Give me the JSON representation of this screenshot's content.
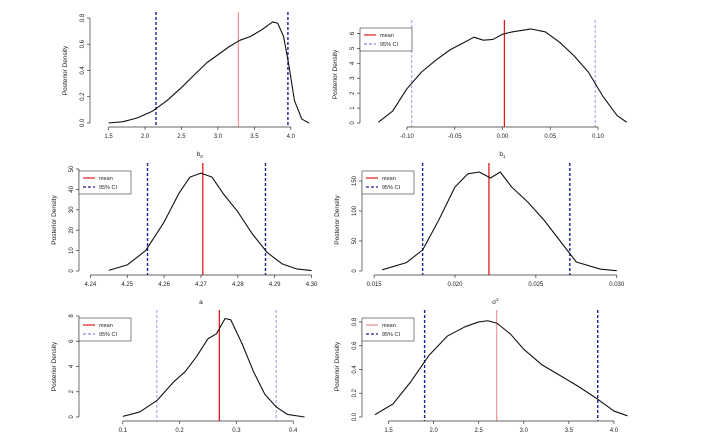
{
  "figure": {
    "y_axis_label": "Posterior Density",
    "legend": {
      "mean_label": "mean",
      "ci_label": "95% CI"
    },
    "colors": {
      "curve": "#111111",
      "mean_light": "#f08a8a",
      "mean_strong": "#e31a1c",
      "ci_light": "#8a8fe6",
      "ci_dark": "#1c1f8f",
      "frame": "#333333"
    }
  },
  "chart_data": [
    {
      "type": "line",
      "xlabel": "b",
      "xlabel_sub": "0",
      "ylabel": "Posterior Density",
      "xlim": [
        1.3,
        4.4
      ],
      "ylim": [
        0,
        0.8
      ],
      "xticks": [
        "1.5",
        "2.0",
        "2.5",
        "3.0",
        "3.5",
        "4.0"
      ],
      "yticks": [
        "0.0",
        "0.2",
        "0.4",
        "0.6",
        "0.8"
      ],
      "x": [
        1.5,
        1.7,
        1.9,
        2.1,
        2.3,
        2.5,
        2.7,
        2.85,
        3.0,
        3.15,
        3.3,
        3.45,
        3.6,
        3.75,
        3.82,
        3.9,
        3.97,
        4.05,
        4.15,
        4.25
      ],
      "y": [
        0.0,
        0.01,
        0.04,
        0.09,
        0.17,
        0.27,
        0.38,
        0.46,
        0.52,
        0.58,
        0.63,
        0.66,
        0.71,
        0.77,
        0.76,
        0.66,
        0.45,
        0.17,
        0.03,
        0.0
      ],
      "mean": 3.28,
      "ci": [
        2.15,
        3.96
      ],
      "legend_position": "none",
      "legend_style": {
        "mean": "light",
        "ci": "dark"
      }
    },
    {
      "type": "line",
      "xlabel": "b",
      "xlabel_sub": "1",
      "ylabel": "Posterior Density",
      "xlim": [
        -0.145,
        0.145
      ],
      "ylim": [
        0,
        6.5
      ],
      "xticks": [
        "-0.10",
        "-0.05",
        "0.00",
        "0.05",
        "0.10"
      ],
      "yticks": [
        "0",
        "1",
        "2",
        "3",
        "4",
        "5",
        "6"
      ],
      "x": [
        -0.13,
        -0.115,
        -0.1,
        -0.085,
        -0.07,
        -0.055,
        -0.04,
        -0.03,
        -0.02,
        -0.01,
        0.0,
        0.01,
        0.02,
        0.03,
        0.045,
        0.06,
        0.075,
        0.09,
        0.105,
        0.12,
        0.13
      ],
      "y": [
        0.05,
        0.8,
        2.3,
        3.4,
        4.2,
        4.9,
        5.4,
        5.75,
        5.55,
        5.6,
        5.95,
        6.1,
        6.2,
        6.3,
        6.1,
        5.4,
        4.5,
        3.4,
        1.8,
        0.5,
        0.05
      ],
      "mean": 0.002,
      "ci": [
        -0.095,
        0.097
      ],
      "legend_position": "top-left",
      "legend_style": {
        "mean": "strong",
        "ci": "light"
      }
    },
    {
      "type": "line",
      "xlabel": "a",
      "xlabel_sub": "",
      "ylabel": "Posterior Density",
      "xlim": [
        4.238,
        4.305
      ],
      "ylim": [
        0,
        50
      ],
      "xticks": [
        "4.24",
        "4.25",
        "4.26",
        "4.27",
        "4.28",
        "4.29",
        "4.30"
      ],
      "yticks": [
        "0",
        "10",
        "20",
        "30",
        "40",
        "50"
      ],
      "x": [
        4.245,
        4.25,
        4.255,
        4.26,
        4.264,
        4.267,
        4.27,
        4.273,
        4.276,
        4.28,
        4.284,
        4.288,
        4.292,
        4.296,
        4.3
      ],
      "y": [
        0.3,
        3,
        10,
        24,
        38,
        46,
        48,
        46,
        38,
        29,
        18,
        9,
        3.5,
        1,
        0.2
      ],
      "mean": 4.2705,
      "ci": [
        4.2555,
        4.2875
      ],
      "legend_position": "top-left",
      "legend_style": {
        "mean": "strong",
        "ci": "dark"
      }
    },
    {
      "type": "line",
      "xlabel": "σ",
      "xlabel_sup": "2",
      "ylabel": "Posterior Density",
      "xlim": [
        0.0145,
        0.0315
      ],
      "ylim": [
        0,
        170
      ],
      "xticks": [
        "0.015",
        "0.020",
        "0.025",
        "0.030"
      ],
      "yticks": [
        "0",
        "50",
        "100",
        "150"
      ],
      "x": [
        0.0155,
        0.017,
        0.018,
        0.019,
        0.02,
        0.0208,
        0.0215,
        0.0222,
        0.0228,
        0.0235,
        0.0245,
        0.0255,
        0.0265,
        0.0275,
        0.029,
        0.03
      ],
      "y": [
        2,
        14,
        35,
        85,
        140,
        162,
        165,
        155,
        165,
        140,
        115,
        85,
        50,
        15,
        3,
        0.5
      ],
      "mean": 0.0221,
      "ci": [
        0.018,
        0.0271
      ],
      "legend_position": "top-left",
      "legend_style": {
        "mean": "strong",
        "ci": "dark"
      }
    },
    {
      "type": "line",
      "xlabel": "",
      "xlabel_sub": "",
      "ylabel": "Posterior Density",
      "xlim": [
        0.03,
        0.47
      ],
      "ylim": [
        0,
        8
      ],
      "xticks": [
        "0.1",
        "0.2",
        "0.3",
        "0.4"
      ],
      "yticks": [
        "0",
        "2",
        "4",
        "6",
        "8"
      ],
      "x": [
        0.1,
        0.13,
        0.16,
        0.19,
        0.21,
        0.23,
        0.25,
        0.265,
        0.28,
        0.29,
        0.31,
        0.33,
        0.35,
        0.37,
        0.39,
        0.42
      ],
      "y": [
        0.05,
        0.4,
        1.3,
        2.8,
        3.6,
        4.8,
        6.2,
        6.6,
        7.8,
        7.7,
        5.8,
        3.6,
        1.8,
        0.8,
        0.2,
        0.0
      ],
      "mean": 0.27,
      "ci": [
        0.16,
        0.37
      ],
      "legend_position": "top-left",
      "legend_style": {
        "mean": "strong",
        "ci": "light"
      }
    },
    {
      "type": "line",
      "xlabel": "",
      "xlabel_sub": "",
      "ylabel": "Posterior Density",
      "xlim": [
        1.25,
        4.3
      ],
      "ylim": [
        0,
        0.85
      ],
      "xticks": [
        "1.5",
        "2.0",
        "2.5",
        "3.0",
        "3.5",
        "4.0"
      ],
      "yticks": [
        "0.0",
        "0.2",
        "0.4",
        "0.6",
        "0.8"
      ],
      "x": [
        1.35,
        1.55,
        1.75,
        1.95,
        2.15,
        2.35,
        2.5,
        2.6,
        2.7,
        2.85,
        3.0,
        3.2,
        3.4,
        3.6,
        3.8,
        4.0,
        4.15
      ],
      "y": [
        0.02,
        0.11,
        0.3,
        0.52,
        0.68,
        0.76,
        0.8,
        0.81,
        0.79,
        0.7,
        0.57,
        0.44,
        0.35,
        0.26,
        0.16,
        0.05,
        0.01
      ],
      "mean": 2.7,
      "ci": [
        1.9,
        3.82
      ],
      "legend_position": "top-left",
      "legend_style": {
        "mean": "light",
        "ci": "dark"
      }
    }
  ]
}
